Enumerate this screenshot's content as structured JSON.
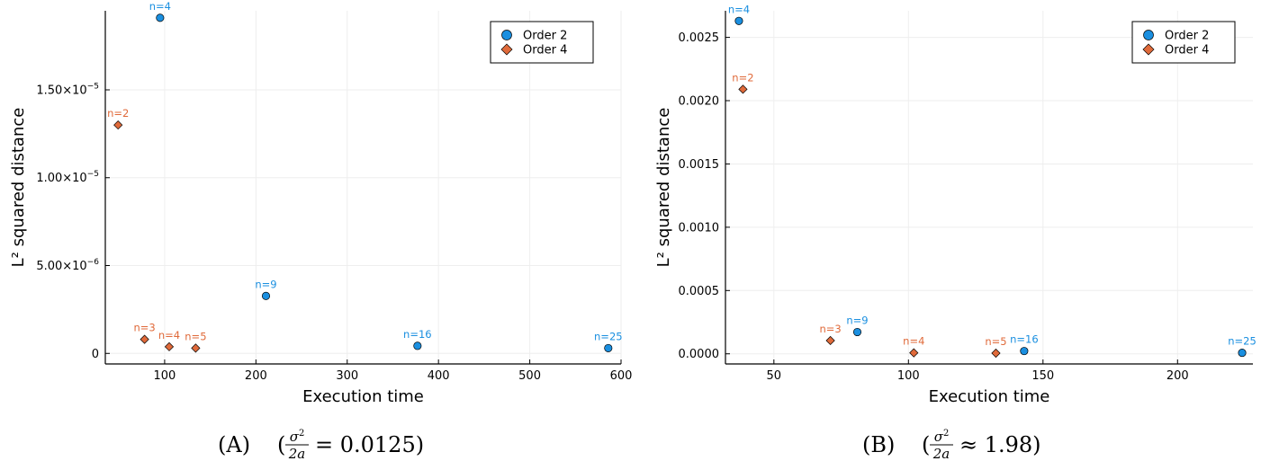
{
  "colors": {
    "order2": "#1a8fe0",
    "order4": "#e06a3a",
    "grid": "#eeeeee"
  },
  "chart_data": [
    {
      "type": "scatter",
      "xlabel": "Execution time",
      "ylabel": "L² squared distance",
      "xlim": [
        35,
        600
      ],
      "ylim": [
        -6e-07,
        1.95e-05
      ],
      "xticks": [
        {
          "v": 100,
          "label": "100"
        },
        {
          "v": 200,
          "label": "200"
        },
        {
          "v": 300,
          "label": "300"
        },
        {
          "v": 400,
          "label": "400"
        },
        {
          "v": 500,
          "label": "500"
        },
        {
          "v": 600,
          "label": "600"
        }
      ],
      "yticks": [
        {
          "v": 0,
          "label": "0",
          "exp": ""
        },
        {
          "v": 5e-06,
          "label": "5.00×10",
          "exp": "−6"
        },
        {
          "v": 1e-05,
          "label": "1.00×10",
          "exp": "−5"
        },
        {
          "v": 1.5e-05,
          "label": "1.50×10",
          "exp": "−5"
        }
      ],
      "legend": {
        "position": "top-right",
        "entries": [
          "Order 2",
          "Order 4"
        ]
      },
      "series": [
        {
          "name": "Order 2",
          "marker": "circle",
          "points": [
            {
              "x": 95,
              "y": 1.91e-05,
              "label": "n=4"
            },
            {
              "x": 211,
              "y": 3.27e-06,
              "label": "n=9"
            },
            {
              "x": 377,
              "y": 4.3e-07,
              "label": "n=16"
            },
            {
              "x": 586,
              "y": 3e-07,
              "label": "n=25"
            }
          ]
        },
        {
          "name": "Order 4",
          "marker": "diamond",
          "points": [
            {
              "x": 49,
              "y": 1.3e-05,
              "label": "n=2"
            },
            {
              "x": 78,
              "y": 8e-07,
              "label": "n=3"
            },
            {
              "x": 105,
              "y": 3.8e-07,
              "label": "n=4"
            },
            {
              "x": 134,
              "y": 3e-07,
              "label": "n=5"
            }
          ]
        }
      ],
      "caption": {
        "letter": "(A)",
        "rel": "=",
        "value": "0.0125)"
      }
    },
    {
      "type": "scatter",
      "xlabel": "Execution time",
      "ylabel": "L² squared distance",
      "xlim": [
        32,
        228
      ],
      "ylim": [
        -8e-05,
        0.00271
      ],
      "xticks": [
        {
          "v": 50,
          "label": "50"
        },
        {
          "v": 100,
          "label": "100"
        },
        {
          "v": 150,
          "label": "150"
        },
        {
          "v": 200,
          "label": "200"
        }
      ],
      "yticks": [
        {
          "v": 0,
          "label": "0.0000"
        },
        {
          "v": 0.0005,
          "label": "0.0005"
        },
        {
          "v": 0.001,
          "label": "0.0010"
        },
        {
          "v": 0.0015,
          "label": "0.0015"
        },
        {
          "v": 0.002,
          "label": "0.0020"
        },
        {
          "v": 0.0025,
          "label": "0.0025"
        }
      ],
      "legend": {
        "position": "top-right",
        "entries": [
          "Order 2",
          "Order 4"
        ]
      },
      "series": [
        {
          "name": "Order 2",
          "marker": "circle",
          "points": [
            {
              "x": 37,
              "y": 0.00263,
              "label": "n=4"
            },
            {
              "x": 81,
              "y": 0.000172,
              "label": "n=9"
            },
            {
              "x": 143,
              "y": 2.2e-05,
              "label": "n=16"
            },
            {
              "x": 224,
              "y": 8e-06,
              "label": "n=25"
            }
          ]
        },
        {
          "name": "Order 4",
          "marker": "diamond",
          "points": [
            {
              "x": 38.5,
              "y": 0.00209,
              "label": "n=2"
            },
            {
              "x": 71,
              "y": 0.000105,
              "label": "n=3"
            },
            {
              "x": 102,
              "y": 8e-06,
              "label": "n=4"
            },
            {
              "x": 132.5,
              "y": 5e-06,
              "label": "n=5"
            }
          ]
        }
      ],
      "caption": {
        "letter": "(B)",
        "rel": "≈",
        "value": "1.98)"
      }
    }
  ],
  "caption_math": {
    "open": "(",
    "num_sym": "σ",
    "num_exp": "2",
    "den": "2a"
  }
}
